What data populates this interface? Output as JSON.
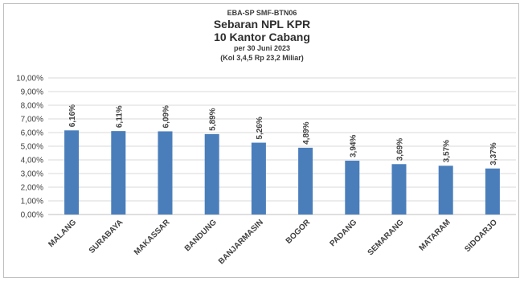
{
  "header": {
    "line1": "EBA-SP  SMF-BTN06",
    "line2": "Sebaran NPL KPR",
    "line3": "10 Kantor Cabang",
    "line4": "per 30 Juni 2023",
    "line5": "(Kol 3,4,5 Rp 23,2 Miliar)"
  },
  "colors": {
    "bar": "#4a7ebb",
    "grid": "#d9d9d9",
    "axis": "#bfbfbf"
  },
  "chart_data": {
    "type": "bar",
    "title": "Sebaran NPL KPR",
    "categories": [
      "MALANG",
      "SURABAYA",
      "MAKASSAR",
      "BANDUNG",
      "BANJARMASIN",
      "BOGOR",
      "PADANG",
      "SEMARANG",
      "MATARAM",
      "SIDOARJO"
    ],
    "values": [
      6.16,
      6.11,
      6.09,
      5.89,
      5.26,
      4.89,
      3.94,
      3.69,
      3.57,
      3.37
    ],
    "data_labels": [
      "6,16%",
      "6,11%",
      "6,09%",
      "5,89%",
      "5,26%",
      "4,89%",
      "3,94%",
      "3,69%",
      "3,57%",
      "3,37%"
    ],
    "ylim": [
      0,
      10
    ],
    "yticks": [
      0,
      1,
      2,
      3,
      4,
      5,
      6,
      7,
      8,
      9,
      10
    ],
    "ytick_labels": [
      "0,00%",
      "1,00%",
      "2,00%",
      "3,00%",
      "4,00%",
      "5,00%",
      "6,00%",
      "7,00%",
      "8,00%",
      "9,00%",
      "10,00%"
    ],
    "grid": true,
    "legend": "none"
  }
}
